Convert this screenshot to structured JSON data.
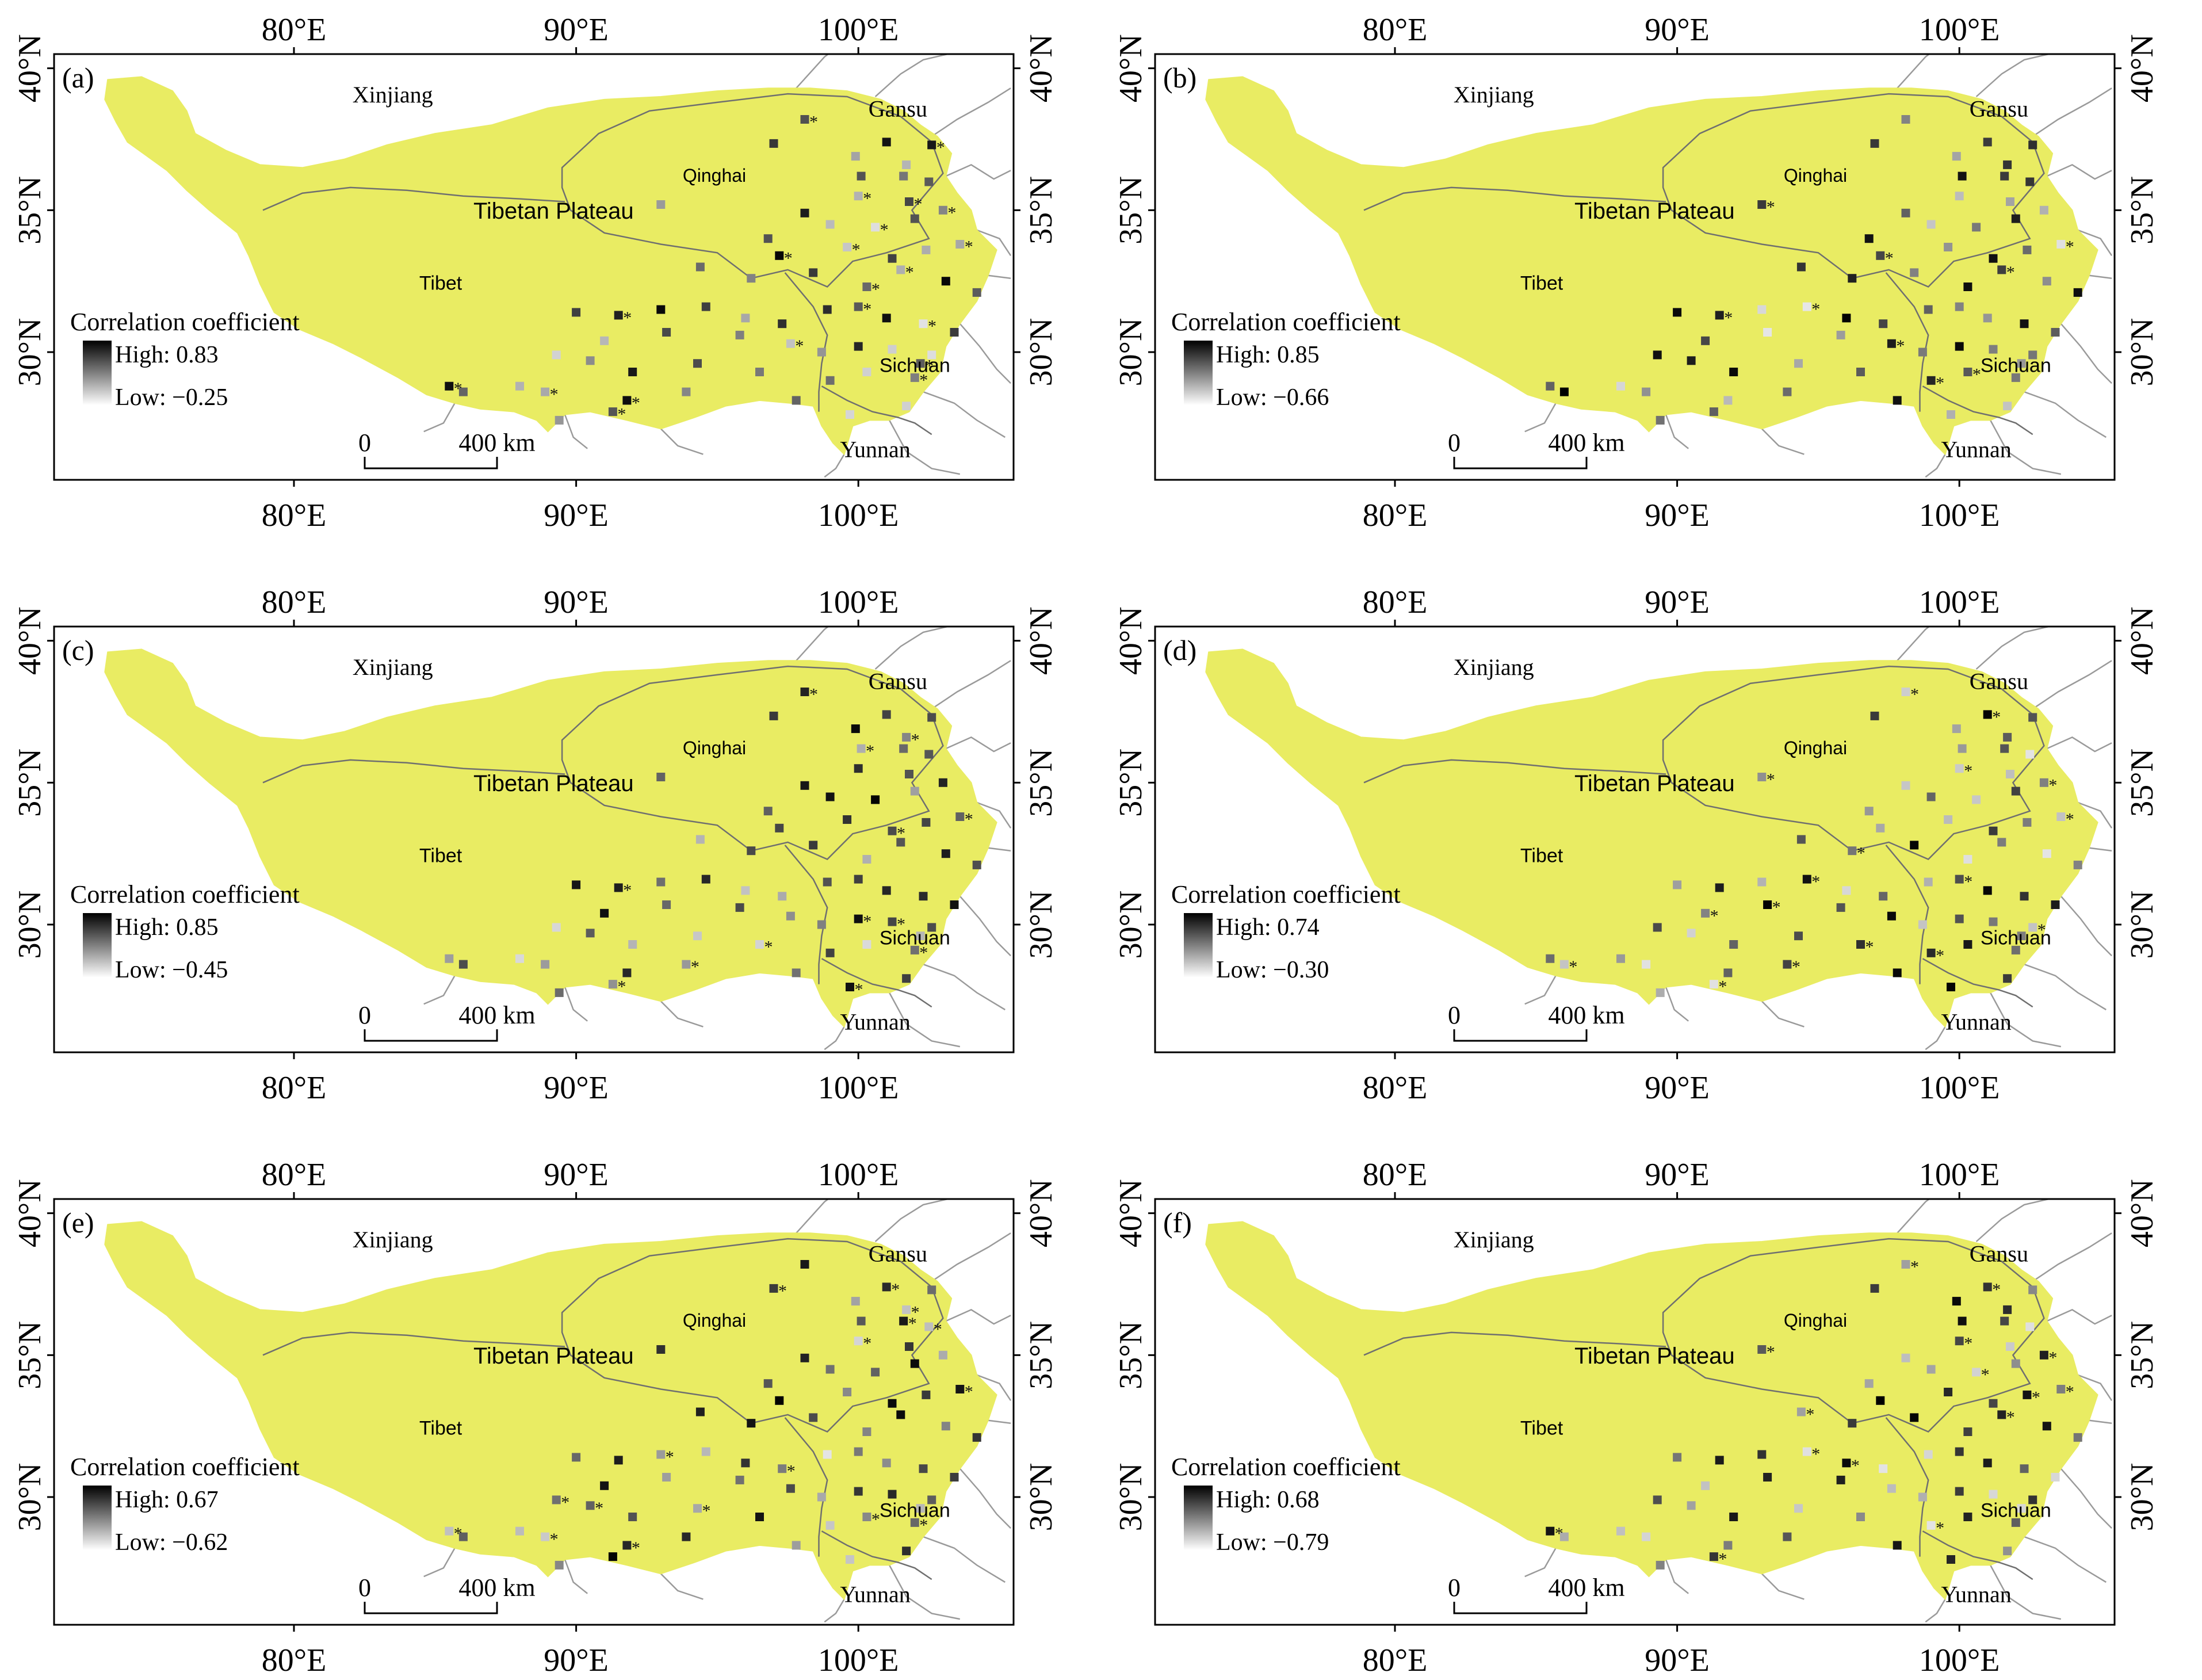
{
  "colors": {
    "plateau_fill": "#e9ec63",
    "boundary": "#6f6f6f",
    "outside_boundary": "#9a9a9a",
    "frame": "#000000",
    "background": "#ffffff"
  },
  "axes": {
    "top_ticks": [
      "80°E",
      "90°E",
      "100°E"
    ],
    "bottom_ticks": [
      "80°E",
      "90°E",
      "100°E"
    ],
    "left_ticks": [
      "40°N",
      "35°N",
      "30°N"
    ],
    "right_ticks": [
      "40°N",
      "35°N",
      "30°N"
    ],
    "lon_values": [
      80,
      90,
      100
    ],
    "lat_values": [
      40,
      35,
      30
    ],
    "lon_range": [
      71.5,
      105.5
    ],
    "lat_range": [
      25.5,
      40.5
    ]
  },
  "place_labels": {
    "xinjiang": "Xinjiang",
    "gansu": "Gansu",
    "qinghai": "Qinghai",
    "tibetan_plateau": "Tibetan Plateau",
    "tibet": "Tibet",
    "sichuan": "Sichuan",
    "yunnan": "Yunnan"
  },
  "legend": {
    "title": "Correlation coefficient",
    "high_prefix": "High: ",
    "low_prefix": "Low: "
  },
  "scale_bar": {
    "zero": "0",
    "distance": "400 km"
  },
  "panels": [
    {
      "id": "(a)",
      "high": "0.83",
      "low": "−0.25",
      "high_value": 0.83,
      "low_value": -0.25,
      "seed": 11
    },
    {
      "id": "(b)",
      "high": "0.85",
      "low": "−0.66",
      "high_value": 0.85,
      "low_value": -0.66,
      "seed": 23
    },
    {
      "id": "(c)",
      "high": "0.85",
      "low": "−0.45",
      "high_value": 0.85,
      "low_value": -0.45,
      "seed": 37
    },
    {
      "id": "(d)",
      "high": "0.74",
      "low": "−0.30",
      "high_value": 0.74,
      "low_value": -0.3,
      "seed": 41
    },
    {
      "id": "(e)",
      "high": "0.67",
      "low": "−0.62",
      "high_value": 0.67,
      "low_value": -0.62,
      "seed": 53
    },
    {
      "id": "(f)",
      "high": "0.68",
      "low": "−0.79",
      "high_value": 0.68,
      "low_value": -0.79,
      "seed": 67
    }
  ],
  "significance_marker": "*",
  "stations": [
    [
      97.0,
      37.35
    ],
    [
      98.1,
      38.2
    ],
    [
      99.9,
      36.9
    ],
    [
      101.0,
      37.4
    ],
    [
      102.6,
      37.3
    ],
    [
      101.7,
      36.6
    ],
    [
      100.1,
      36.2
    ],
    [
      101.6,
      36.2
    ],
    [
      102.5,
      36.0
    ],
    [
      93.0,
      35.2
    ],
    [
      98.1,
      34.9
    ],
    [
      100.0,
      35.5
    ],
    [
      101.8,
      35.3
    ],
    [
      103.0,
      35.0
    ],
    [
      96.8,
      34.0
    ],
    [
      99.0,
      34.5
    ],
    [
      100.6,
      34.4
    ],
    [
      102.0,
      34.7
    ],
    [
      97.2,
      33.4
    ],
    [
      99.6,
      33.7
    ],
    [
      101.2,
      33.3
    ],
    [
      102.4,
      33.6
    ],
    [
      103.6,
      33.8
    ],
    [
      94.4,
      33.0
    ],
    [
      96.2,
      32.6
    ],
    [
      98.4,
      32.8
    ],
    [
      100.3,
      32.3
    ],
    [
      101.5,
      32.9
    ],
    [
      103.1,
      32.5
    ],
    [
      104.2,
      32.1
    ],
    [
      90.0,
      31.4
    ],
    [
      91.5,
      31.3
    ],
    [
      93.0,
      31.5
    ],
    [
      94.6,
      31.6
    ],
    [
      96.0,
      31.2
    ],
    [
      97.3,
      31.0
    ],
    [
      98.9,
      31.5
    ],
    [
      100.0,
      31.6
    ],
    [
      101.0,
      31.2
    ],
    [
      102.3,
      31.0
    ],
    [
      103.4,
      30.7
    ],
    [
      91.0,
      30.4
    ],
    [
      93.2,
      30.7
    ],
    [
      95.8,
      30.6
    ],
    [
      97.6,
      30.3
    ],
    [
      98.7,
      30.0
    ],
    [
      100.0,
      30.2
    ],
    [
      101.2,
      30.1
    ],
    [
      102.6,
      29.9
    ],
    [
      89.3,
      29.9
    ],
    [
      90.5,
      29.7
    ],
    [
      92.0,
      29.3
    ],
    [
      94.3,
      29.6
    ],
    [
      96.5,
      29.3
    ],
    [
      99.0,
      29.0
    ],
    [
      100.3,
      29.3
    ],
    [
      102.0,
      29.1
    ],
    [
      88.0,
      28.8
    ],
    [
      88.9,
      28.6
    ],
    [
      86.0,
      28.6
    ],
    [
      85.5,
      28.8
    ],
    [
      91.8,
      28.3
    ],
    [
      93.9,
      28.6
    ],
    [
      97.8,
      28.3
    ],
    [
      99.7,
      27.8
    ],
    [
      101.7,
      28.1
    ],
    [
      102.2,
      29.6
    ],
    [
      89.4,
      27.6
    ],
    [
      91.3,
      27.9
    ]
  ]
}
